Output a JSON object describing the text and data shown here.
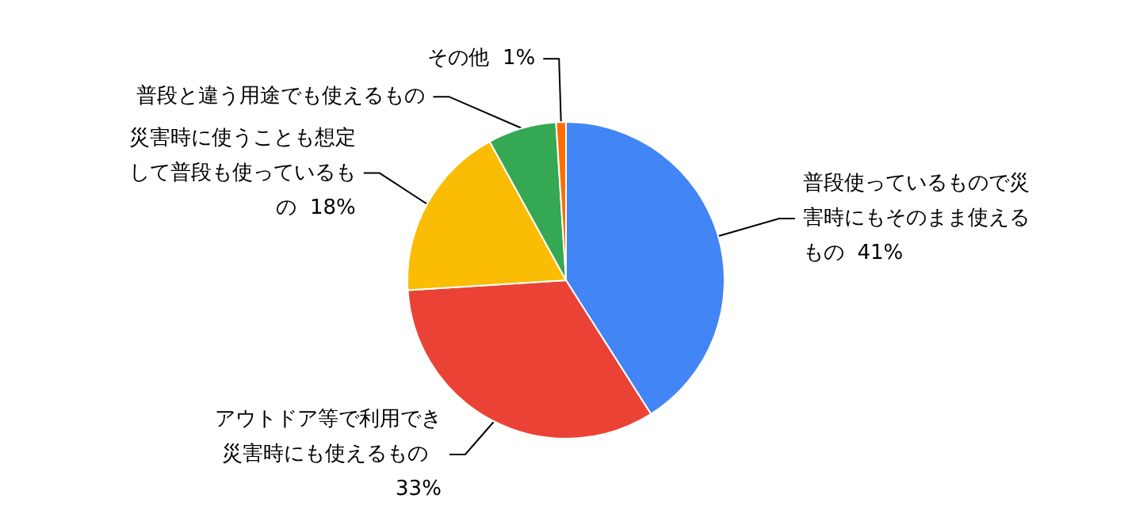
{
  "chart_data": {
    "type": "pie",
    "categories": [
      "普段使っているもので災害時にもそのまま使えるもの",
      "アウトドア等で利用でき災害時にも使えるもの",
      "災害時に使うことも想定して普段も使っているもの",
      "普段と違う用途でも使えるもの",
      "その他"
    ],
    "values": [
      41,
      33,
      18,
      7,
      1
    ],
    "value_labels": [
      "41%",
      "33%",
      "18%",
      null,
      "1%"
    ],
    "colors": [
      "#4285f4",
      "#ea4335",
      "#fbbc04",
      "#34a853",
      "#ff6d01"
    ],
    "legend": false
  }
}
